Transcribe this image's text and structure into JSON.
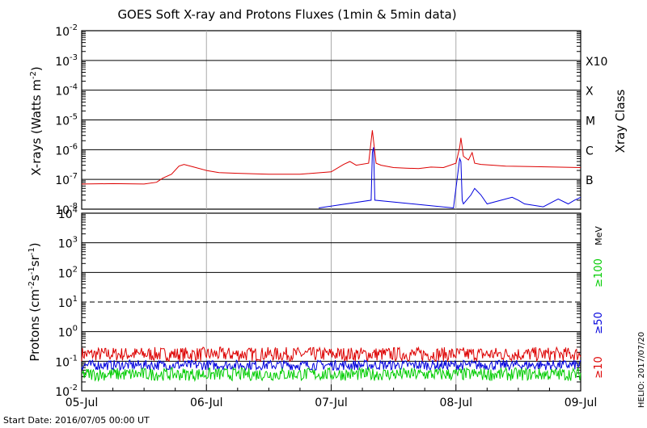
{
  "chart_data": [
    {
      "type": "line",
      "title": "GOES Soft X-ray and Protons Fluxes   (1min & 5min data)",
      "ylabel": "X-rays (Watts m",
      "ylabel_sup": "-2",
      "ylabel_close": ")",
      "yscale": "log",
      "ylim": [
        1e-08,
        0.01
      ],
      "y_ticks": [
        {
          "base": "10",
          "exp": "-2"
        },
        {
          "base": "10",
          "exp": "-3"
        },
        {
          "base": "10",
          "exp": "-4"
        },
        {
          "base": "10",
          "exp": "-5"
        },
        {
          "base": "10",
          "exp": "-6"
        },
        {
          "base": "10",
          "exp": "-7"
        },
        {
          "base": "10",
          "exp": "-8"
        }
      ],
      "right_axis_label": "Xray Class",
      "class_labels": [
        "X10",
        "X",
        "M",
        "C",
        "B"
      ],
      "x_unit": "days since 05-Jul",
      "series": [
        {
          "color": "#dd0000",
          "x": [
            0,
            0.25,
            0.5,
            0.6,
            0.65,
            0.72,
            0.78,
            0.82,
            0.9,
            1.0,
            1.1,
            1.25,
            1.5,
            1.75,
            2.0,
            2.1,
            2.15,
            2.2,
            2.3,
            2.33,
            2.36,
            2.4,
            2.5,
            2.6,
            2.7,
            2.8,
            2.9,
            3.0,
            3.03,
            3.04,
            3.06,
            3.1,
            3.13,
            3.15,
            3.2,
            3.3,
            3.4,
            3.6,
            3.8,
            4.0
          ],
          "y": [
            7e-08,
            7.2e-08,
            7e-08,
            8e-08,
            1.1e-07,
            1.5e-07,
            2.8e-07,
            3.2e-07,
            2.6e-07,
            2e-07,
            1.7e-07,
            1.6e-07,
            1.5e-07,
            1.5e-07,
            1.8e-07,
            3.2e-07,
            4e-07,
            3e-07,
            3.5e-07,
            4.5e-06,
            3.5e-07,
            3e-07,
            2.5e-07,
            2.4e-07,
            2.3e-07,
            2.6e-07,
            2.5e-07,
            3.5e-07,
            1.2e-06,
            2.5e-06,
            6e-07,
            4.5e-07,
            8e-07,
            3.5e-07,
            3.2e-07,
            3e-07,
            2.8e-07,
            2.7e-07,
            2.6e-07,
            2.5e-07
          ]
        },
        {
          "color": "#0000dd",
          "x": [
            1.9,
            2.32,
            2.33,
            2.34,
            2.35,
            2.98,
            3.03,
            3.04,
            3.05,
            3.06,
            3.12,
            3.15,
            3.2,
            3.25,
            3.45,
            3.5,
            3.55,
            3.7,
            3.78,
            3.82,
            3.9,
            3.95,
            4.0
          ],
          "y": [
            1.1e-08,
            2e-08,
            8e-07,
            1.2e-06,
            2e-08,
            1.1e-08,
            5e-07,
            4e-07,
            2e-08,
            1.5e-08,
            3e-08,
            5e-08,
            3e-08,
            1.5e-08,
            2.5e-08,
            2e-08,
            1.5e-08,
            1.2e-08,
            1.8e-08,
            2.2e-08,
            1.5e-08,
            2e-08,
            2.5e-08
          ]
        }
      ]
    },
    {
      "type": "line",
      "ylabel": "Protons (cm",
      "ylabel_sup1": "-2",
      "ylabel_mid": "s",
      "ylabel_sup2": "-1",
      "ylabel_mid2": "sr",
      "ylabel_sup3": "-1",
      "ylabel_close": ")",
      "yscale": "log",
      "ylim": [
        0.01,
        10000
      ],
      "y_ticks": [
        {
          "base": "10",
          "exp": "4"
        },
        {
          "base": "10",
          "exp": "3"
        },
        {
          "base": "10",
          "exp": "2"
        },
        {
          "base": "10",
          "exp": "1"
        },
        {
          "base": "10",
          "exp": "0"
        },
        {
          "base": "10",
          "exp": "-1"
        },
        {
          "base": "10",
          "exp": "-2"
        }
      ],
      "threshold": 10,
      "right_unit": "MeV",
      "energy_labels": [
        {
          "label": "≥100",
          "color": "#00cc00"
        },
        {
          "label": "≥50",
          "color": "#0000dd"
        },
        {
          "label": "≥10",
          "color": "#dd0000"
        }
      ],
      "series": [
        {
          "name": "≥10",
          "color": "#dd0000",
          "x": [
            0,
            4
          ],
          "y": [
            0.15,
            0.15
          ],
          "noise": [
            0.1,
            0.3
          ]
        },
        {
          "name": "≥50",
          "color": "#0000dd",
          "x": [
            0,
            4
          ],
          "y": [
            0.07,
            0.07
          ],
          "noise": [
            0.05,
            0.11
          ]
        },
        {
          "name": "≥100",
          "color": "#00cc00",
          "x": [
            0,
            4
          ],
          "y": [
            0.035,
            0.035
          ],
          "noise": [
            0.022,
            0.06
          ]
        }
      ]
    }
  ],
  "x_axis": {
    "tick_labels": [
      "05-Jul",
      "06-Jul",
      "07-Jul",
      "08-Jul",
      "09-Jul"
    ],
    "xlim": [
      0,
      4
    ]
  },
  "footer": {
    "start_date": "Start Date: 2016/07/05 00:00 UT",
    "credit": "HELIO: 2017/07/20"
  }
}
